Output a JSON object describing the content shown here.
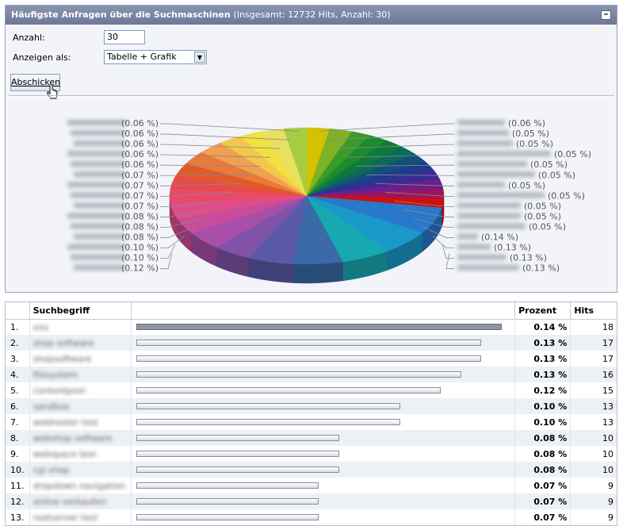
{
  "panel": {
    "title": "Häufigste Anfragen über die Suchmaschinen",
    "subtitle": "(Insgesamt: 12732 Hits, Anzahl: 30)",
    "collapse_label": "–"
  },
  "form": {
    "anzahl_label": "Anzahl:",
    "anzahl_value": "30",
    "anzeigen_label": "Anzeigen als:",
    "anzeigen_value": "Tabelle + Grafik",
    "submit_label": "Abschicken"
  },
  "chart_data": {
    "type": "pie",
    "style": "3d",
    "title": "",
    "slices": [
      {
        "label": "verschlüsselt",
        "percent": 0.06,
        "color": "#d4c200"
      },
      {
        "label": "verschlüsselt",
        "percent": 0.06,
        "color": "#7db325"
      },
      {
        "label": "verschlüsselt",
        "percent": 0.05,
        "color": "#3a9a2a"
      },
      {
        "label": "verschlüsselt",
        "percent": 0.05,
        "color": "#1c8c2c"
      },
      {
        "label": "verschlüsselt",
        "percent": 0.05,
        "color": "#0e7a3a"
      },
      {
        "label": "verschlüsselt",
        "percent": 0.05,
        "color": "#0b6a5a"
      },
      {
        "label": "verschlüsselt",
        "percent": 0.05,
        "color": "#12507a"
      },
      {
        "label": "verschlüsselt",
        "percent": 0.05,
        "color": "#203a8a"
      },
      {
        "label": "verschlüsselt",
        "percent": 0.05,
        "color": "#3b2a92"
      },
      {
        "label": "verschlüsselt",
        "percent": 0.05,
        "color": "#6a1f8a"
      },
      {
        "label": "verschlüsselt",
        "percent": 0.05,
        "color": "#9a1460"
      },
      {
        "label": "verschlüsselt",
        "percent": 0.05,
        "color": "#cc1010"
      },
      {
        "label": "verschlüsselt",
        "percent": 0.14,
        "color": "#2a78cc"
      },
      {
        "label": "verschlüsselt",
        "percent": 0.13,
        "color": "#1a98c8"
      },
      {
        "label": "verschlüsselt",
        "percent": 0.13,
        "color": "#18a8b0"
      },
      {
        "label": "verschlüsselt",
        "percent": 0.13,
        "color": "#3a6aa8"
      },
      {
        "label": "verschlüsselt",
        "percent": 0.12,
        "color": "#5a5aa8"
      },
      {
        "label": "verschlüsselt",
        "percent": 0.1,
        "color": "#8052a8"
      },
      {
        "label": "verschlüsselt",
        "percent": 0.1,
        "color": "#a84ea8"
      },
      {
        "label": "verschlüsselt",
        "percent": 0.08,
        "color": "#c84c9a"
      },
      {
        "label": "verschlüsselt",
        "percent": 0.08,
        "color": "#e04c8a"
      },
      {
        "label": "verschlüsselt",
        "percent": 0.08,
        "color": "#ea4a6a"
      },
      {
        "label": "verschlüsselt",
        "percent": 0.07,
        "color": "#e84a4a"
      },
      {
        "label": "verschlüsselt",
        "percent": 0.07,
        "color": "#e05a2a"
      },
      {
        "label": "verschlüsselt",
        "percent": 0.07,
        "color": "#ea7a3a"
      },
      {
        "label": "verschlüsselt",
        "percent": 0.07,
        "color": "#f0a050"
      },
      {
        "label": "verschlüsselt",
        "percent": 0.06,
        "color": "#f2c84a"
      },
      {
        "label": "verschlüsselt",
        "percent": 0.06,
        "color": "#f0e040"
      },
      {
        "label": "verschlüsselt",
        "percent": 0.06,
        "color": "#e8e060"
      },
      {
        "label": "verschlüsselt",
        "percent": 0.06,
        "color": "#a8cc40"
      }
    ],
    "left_labels": [
      "(0.06 %)",
      "(0.06 %)",
      "(0.06 %)",
      "(0.06 %)",
      "(0.06 %)",
      "(0.07 %)",
      "(0.07 %)",
      "(0.07 %)",
      "(0.07 %)",
      "(0.08 %)",
      "(0.08 %)",
      "(0.08 %)",
      "(0.10 %)",
      "(0.10 %)",
      "(0.12 %)"
    ],
    "right_labels": [
      "(0.06 %)",
      "(0.05 %)",
      "(0.05 %)",
      "(0.05 %)",
      "(0.05 %)",
      "(0.05 %)",
      "(0.05 %)",
      "(0.05 %)",
      "(0.05 %)",
      "(0.05 %)",
      "(0.05 %)",
      "(0.14 %)",
      "(0.13 %)",
      "(0.13 %)",
      "(0.13 %)"
    ]
  },
  "table": {
    "headers": {
      "term": "Suchbegriff",
      "bar": "",
      "pct": "Prozent",
      "hits": "Hits"
    },
    "rows": [
      {
        "num": "1.",
        "term": "xxx",
        "pct": "0.14 %",
        "hits": "18",
        "share": 1.0
      },
      {
        "num": "2.",
        "term": "shop software",
        "pct": "0.13 %",
        "hits": "17",
        "share": 0.944
      },
      {
        "num": "3.",
        "term": "shopsoftware",
        "pct": "0.13 %",
        "hits": "17",
        "share": 0.944
      },
      {
        "num": "4.",
        "term": "filesystem",
        "pct": "0.13 %",
        "hits": "16",
        "share": 0.889
      },
      {
        "num": "5.",
        "term": "contentpool",
        "pct": "0.12 %",
        "hits": "15",
        "share": 0.833
      },
      {
        "num": "6.",
        "term": "sandbox",
        "pct": "0.10 %",
        "hits": "13",
        "share": 0.722
      },
      {
        "num": "7.",
        "term": "webhoster test",
        "pct": "0.10 %",
        "hits": "13",
        "share": 0.722
      },
      {
        "num": "8.",
        "term": "webshop software",
        "pct": "0.08 %",
        "hits": "10",
        "share": 0.556
      },
      {
        "num": "9.",
        "term": "webspace test",
        "pct": "0.08 %",
        "hits": "10",
        "share": 0.556
      },
      {
        "num": "10.",
        "term": "cgi shop",
        "pct": "0.08 %",
        "hits": "10",
        "share": 0.556
      },
      {
        "num": "11.",
        "term": "dropdown navigation",
        "pct": "0.07 %",
        "hits": "9",
        "share": 0.5
      },
      {
        "num": "12.",
        "term": "online verkaufen",
        "pct": "0.07 %",
        "hits": "9",
        "share": 0.5
      },
      {
        "num": "13.",
        "term": "rootserver test",
        "pct": "0.07 %",
        "hits": "9",
        "share": 0.5
      }
    ]
  }
}
